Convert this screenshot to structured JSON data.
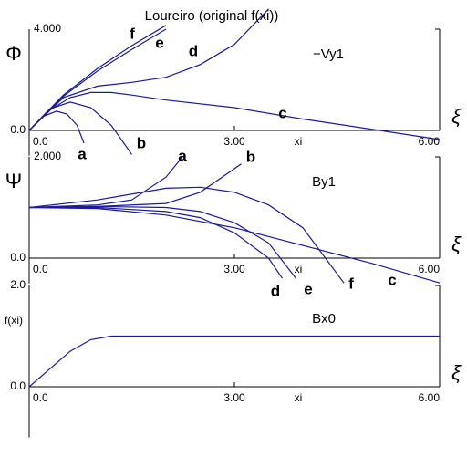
{
  "chart_data": [
    {
      "type": "line",
      "title": "Loureiro (original f(xi))",
      "ylabel": "Φ",
      "annotation": "−Vy1",
      "xlabel": "xi",
      "x_symbol": "ξ",
      "xlim": [
        0,
        6
      ],
      "ylim": [
        -1,
        4
      ],
      "xticks": [
        {
          "value": 0,
          "label": "0.0"
        },
        {
          "value": 3,
          "label": "3.00"
        },
        {
          "value": 6,
          "label": "6.00"
        }
      ],
      "yticks": [
        {
          "value": 0,
          "label": "0.0"
        },
        {
          "value": 4,
          "label": "4.000"
        }
      ],
      "series": [
        {
          "name": "a",
          "color": "#1a1a9a",
          "x": [
            0,
            0.2,
            0.4,
            0.55,
            0.7,
            0.8
          ],
          "values": [
            0,
            0.55,
            0.76,
            0.65,
            0.2,
            -0.5
          ]
        },
        {
          "name": "b",
          "color": "#1a1a9a",
          "x": [
            0,
            0.3,
            0.6,
            0.9,
            1.2,
            1.5
          ],
          "values": [
            0,
            0.85,
            1.12,
            0.9,
            0.2,
            -0.95
          ]
        },
        {
          "name": "c",
          "color": "#1a1a9a",
          "x": [
            0,
            0.3,
            0.6,
            0.9,
            1.2,
            1.5,
            2,
            3,
            4,
            5,
            6
          ],
          "values": [
            0,
            0.8,
            1.3,
            1.5,
            1.5,
            1.4,
            1.2,
            0.9,
            0.45,
            0.05,
            -0.36
          ]
        },
        {
          "name": "d",
          "color": "#1a1a9a",
          "x": [
            0,
            0.5,
            1,
            1.5,
            2,
            2.5,
            3,
            3.5
          ],
          "values": [
            0,
            1.3,
            1.75,
            1.9,
            2.1,
            2.6,
            3.4,
            4.8
          ]
        },
        {
          "name": "e",
          "color": "#1a1a9a",
          "x": [
            0,
            0.5,
            1,
            1.5,
            2
          ],
          "values": [
            0,
            1.35,
            2.35,
            3.2,
            4.0
          ]
        },
        {
          "name": "f",
          "color": "#1a1a9a",
          "x": [
            0,
            0.5,
            1,
            1.5,
            2
          ],
          "values": [
            0,
            1.4,
            2.45,
            3.35,
            4.15
          ]
        }
      ]
    },
    {
      "type": "line",
      "ylabel": "Ψ",
      "annotation": "By1",
      "xlabel": "xi",
      "x_symbol": "ξ",
      "xlim": [
        0,
        6
      ],
      "ylim": [
        -0.5,
        2
      ],
      "xticks": [
        {
          "value": 0,
          "label": "0.0"
        },
        {
          "value": 3,
          "label": "3.00"
        },
        {
          "value": 6,
          "label": "6.00"
        }
      ],
      "yticks": [
        {
          "value": 0,
          "label": "0.0"
        },
        {
          "value": 2,
          "label": "2.000"
        }
      ],
      "series": [
        {
          "name": "a",
          "color": "#1a1a9a",
          "x": [
            0,
            1,
            1.5,
            2,
            2.24
          ],
          "values": [
            1,
            1.05,
            1.15,
            1.6,
            2.0
          ]
        },
        {
          "name": "b",
          "color": "#1a1a9a",
          "x": [
            0,
            1,
            2,
            2.5,
            3.1
          ],
          "values": [
            1,
            1.02,
            1.08,
            1.3,
            1.86
          ]
        },
        {
          "name": "c",
          "color": "#1a1a9a",
          "x": [
            0,
            1,
            2,
            3,
            4,
            5,
            6
          ],
          "values": [
            1,
            0.98,
            0.85,
            0.6,
            0.25,
            -0.1,
            -0.49
          ]
        },
        {
          "name": "d",
          "color": "#1a1a9a",
          "x": [
            0,
            1,
            2,
            2.5,
            3,
            3.5,
            3.7
          ],
          "values": [
            1,
            1.0,
            0.92,
            0.8,
            0.5,
            0,
            -0.4
          ]
        },
        {
          "name": "e",
          "color": "#1a1a9a",
          "x": [
            0,
            1,
            2,
            2.5,
            3,
            3.5,
            3.9
          ],
          "values": [
            1,
            1.02,
            1.0,
            0.92,
            0.7,
            0.3,
            -0.4
          ]
        },
        {
          "name": "f",
          "color": "#1a1a9a",
          "x": [
            0,
            1,
            2,
            2.5,
            3,
            3.5,
            4,
            4.6
          ],
          "values": [
            1,
            1.15,
            1.38,
            1.4,
            1.3,
            1.05,
            0.6,
            -0.49
          ]
        }
      ]
    },
    {
      "type": "line",
      "ylabel": "f(xi)",
      "annotation": "Bx0",
      "xlabel": "xi",
      "x_symbol": "ξ",
      "xlim": [
        0,
        6
      ],
      "ylim": [
        -1,
        2
      ],
      "xticks": [
        {
          "value": 0,
          "label": "0.0"
        },
        {
          "value": 3,
          "label": "3.00"
        },
        {
          "value": 6,
          "label": "6.00"
        }
      ],
      "yticks": [
        {
          "value": 0,
          "label": "0.0"
        },
        {
          "value": 2,
          "label": "2.0"
        }
      ],
      "series": [
        {
          "color": "#1a1a9a",
          "x": [
            0,
            0.3,
            0.6,
            0.9,
            1.2,
            6
          ],
          "values": [
            0,
            0.35,
            0.7,
            0.93,
            1,
            1
          ]
        }
      ]
    }
  ]
}
